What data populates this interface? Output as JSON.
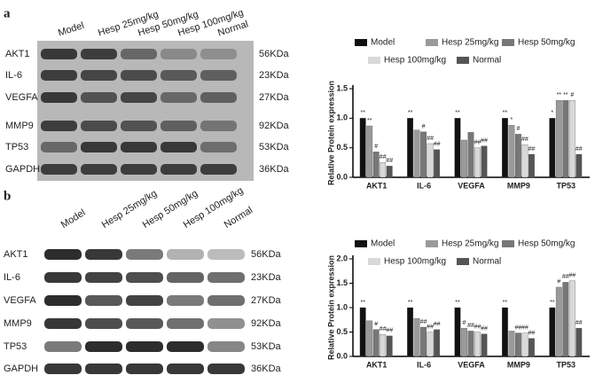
{
  "blots": [
    {
      "panel_label": "a",
      "lanes": [
        "Model",
        "Hesp 25mg/kg",
        "Hesp 50mg/kg",
        "Hesp 100mg/kg",
        "Normal"
      ],
      "rows": [
        {
          "protein": "AKT1",
          "size": "56KDa"
        },
        {
          "protein": "IL-6",
          "size": "23KDa"
        },
        {
          "protein": "VEGFA",
          "size": "27KDa"
        },
        {
          "protein": "MMP9",
          "size": "92KDa"
        },
        {
          "protein": "TP53",
          "size": "53KDa"
        },
        {
          "protein": "GAPDH",
          "size": "36KDa"
        }
      ]
    },
    {
      "panel_label": "b",
      "lanes": [
        "Model",
        "Hesp 25mg/kg",
        "Hesp 50mg/kg",
        "Hesp 100mg/kg",
        "Normal"
      ],
      "rows": [
        {
          "protein": "AKT1",
          "size": "56KDa"
        },
        {
          "protein": "IL-6",
          "size": "23KDa"
        },
        {
          "protein": "VEGFA",
          "size": "27KDa"
        },
        {
          "protein": "MMP9",
          "size": "92KDa"
        },
        {
          "protein": "TP53",
          "size": "53KDa"
        },
        {
          "protein": "GAPDH",
          "size": "36KDa"
        }
      ]
    }
  ],
  "chart_data": [
    {
      "type": "bar",
      "ylabel": "Relative Protein expression",
      "categories": [
        "AKT1",
        "IL-6",
        "VEGFA",
        "MMP9",
        "TP53"
      ],
      "ylim": [
        0,
        1.5
      ],
      "yticks": [
        {
          "value": 0,
          "label": "0.0"
        },
        0.5,
        {
          "value": 1,
          "label": "1.0"
        },
        1.5
      ],
      "series": [
        {
          "name": "Model",
          "color": "#111111",
          "values": [
            1.0,
            1.0,
            1.0,
            1.0,
            1.0
          ],
          "annotations": [
            "**",
            "**",
            "**",
            "**",
            "*"
          ]
        },
        {
          "name": "Hesp 25mg/kg",
          "color": "#9a9a9a",
          "values": [
            0.87,
            0.8,
            0.63,
            0.88,
            1.3
          ],
          "annotations": [
            "**",
            null,
            null,
            "*",
            "**"
          ]
        },
        {
          "name": "Hesp 50mg/kg",
          "color": "#777777",
          "values": [
            0.43,
            0.77,
            0.76,
            0.73,
            1.3
          ],
          "annotations": [
            "#",
            "#",
            null,
            "#",
            "**"
          ]
        },
        {
          "name": "Hesp 100mg/kg",
          "color": "#d9d9d9",
          "values": [
            0.25,
            0.57,
            0.5,
            0.55,
            1.3
          ],
          "annotations": [
            "##",
            "##",
            "##",
            "##",
            "#"
          ]
        },
        {
          "name": "Normal",
          "color": "#555555",
          "values": [
            0.19,
            0.47,
            0.53,
            0.39,
            0.39
          ],
          "annotations": [
            "##",
            "##",
            "##",
            "##",
            "##"
          ]
        }
      ]
    },
    {
      "type": "bar",
      "ylabel": "Relative Protein expression",
      "categories": [
        "AKT1",
        "IL-6",
        "VEGFA",
        "MMP9",
        "TP53"
      ],
      "ylim": [
        0,
        2
      ],
      "yticks": [
        {
          "value": 0,
          "label": "0.0"
        },
        0.5,
        {
          "value": 1,
          "label": "1.0"
        },
        1.5,
        {
          "value": 2,
          "label": "2.0"
        }
      ],
      "series": [
        {
          "name": "Model",
          "color": "#111111",
          "values": [
            1.0,
            1.0,
            1.0,
            1.0,
            1.0
          ],
          "annotations": [
            "**",
            "**",
            "**",
            "**",
            "**"
          ]
        },
        {
          "name": "Hesp 25mg/kg",
          "color": "#9a9a9a",
          "values": [
            0.73,
            0.78,
            0.58,
            0.52,
            1.42
          ],
          "annotations": [
            null,
            null,
            "#",
            null,
            "#"
          ]
        },
        {
          "name": "Hesp 50mg/kg",
          "color": "#777777",
          "values": [
            0.55,
            0.6,
            0.52,
            0.48,
            1.52
          ],
          "annotations": [
            "#",
            "##",
            "##",
            "##",
            "##"
          ]
        },
        {
          "name": "Hesp 100mg/kg",
          "color": "#d9d9d9",
          "values": [
            0.45,
            0.5,
            0.5,
            0.48,
            1.55
          ],
          "annotations": [
            "##",
            "##",
            "##",
            "##",
            "##"
          ]
        },
        {
          "name": "Normal",
          "color": "#555555",
          "values": [
            0.42,
            0.55,
            0.46,
            0.37,
            0.58
          ],
          "annotations": [
            "##",
            "##",
            "##",
            "##",
            "##"
          ]
        }
      ]
    }
  ]
}
